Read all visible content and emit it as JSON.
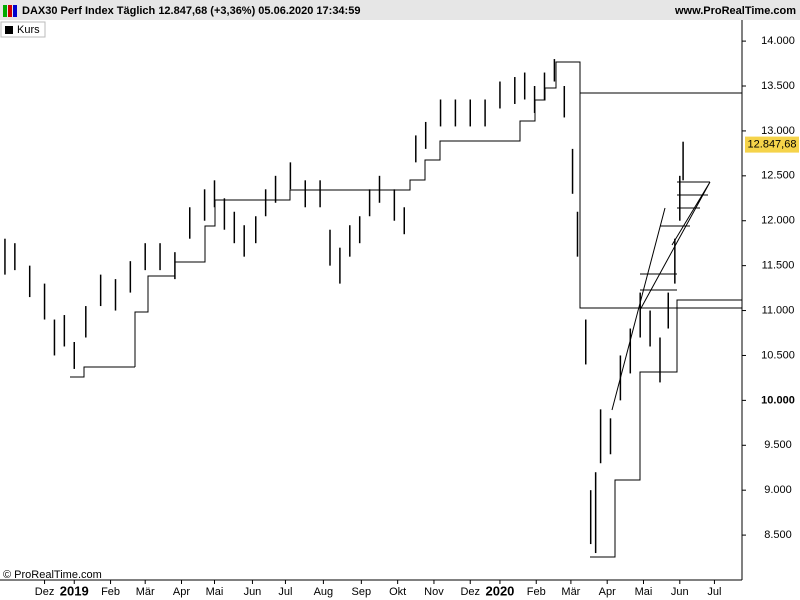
{
  "chart_data": {
    "type": "range-bar",
    "title": "DAX30 Perf Index Täglich 12.847,68 (+3,36%) 05.06.2020 17:34:59",
    "source": "www.ProRealTime.com",
    "copyright": "© ProRealTime.com",
    "legend": "Kurs",
    "color": "#000000",
    "last_price": {
      "value": 12847.68,
      "label": "12.847,68"
    },
    "x": [
      3,
      9,
      18,
      27,
      33,
      39,
      45,
      52,
      61,
      70,
      79,
      88,
      97,
      106,
      115,
      124,
      130,
      136,
      142,
      148,
      155,
      161,
      167,
      176,
      185,
      194,
      200,
      206,
      212,
      218,
      224,
      230,
      239,
      245,
      252,
      258,
      267,
      276,
      285,
      294,
      303,
      312,
      318,
      324,
      330,
      336,
      342,
      347,
      350,
      355,
      358,
      361,
      364,
      370,
      376,
      382,
      388,
      394,
      400,
      405,
      409,
      412,
      414
    ],
    "low": [
      11400,
      11450,
      11150,
      10900,
      10500,
      10600,
      10350,
      10700,
      11050,
      11000,
      11200,
      11450,
      11450,
      11350,
      11800,
      12000,
      12150,
      11900,
      11750,
      11600,
      11750,
      12050,
      12200,
      12350,
      12150,
      12150,
      11500,
      11300,
      11600,
      11750,
      12050,
      12200,
      12000,
      11850,
      12650,
      12800,
      13050,
      13050,
      13050,
      13050,
      13250,
      13300,
      13350,
      13200,
      13350,
      13550,
      13150,
      12300,
      11600,
      10400,
      8400,
      8300,
      9300,
      9400,
      10000,
      10300,
      10700,
      10600,
      10200,
      10800,
      11300,
      12000,
      12450
    ],
    "high": [
      11800,
      11750,
      11500,
      11300,
      10900,
      10950,
      10650,
      11050,
      11400,
      11350,
      11550,
      11750,
      11750,
      11650,
      12150,
      12350,
      12450,
      12250,
      12100,
      11950,
      12050,
      12350,
      12500,
      12650,
      12450,
      12450,
      11900,
      11700,
      11950,
      12050,
      12350,
      12500,
      12350,
      12150,
      12950,
      13100,
      13350,
      13350,
      13350,
      13350,
      13550,
      13600,
      13650,
      13500,
      13650,
      13800,
      13500,
      12800,
      12100,
      10900,
      9000,
      9200,
      9900,
      9800,
      10500,
      10800,
      11200,
      11000,
      10700,
      11200,
      11800,
      12500,
      12880
    ],
    "xlim": [
      0,
      449.7
    ],
    "ylim": [
      8000,
      14235
    ],
    "xticks": [
      {
        "value": 27,
        "label": "Dez"
      },
      {
        "value": 45,
        "label": "2019"
      },
      {
        "value": 67,
        "label": "Feb"
      },
      {
        "value": 88,
        "label": "Mär"
      },
      {
        "value": 110,
        "label": "Apr"
      },
      {
        "value": 130,
        "label": "Mai"
      },
      {
        "value": 153,
        "label": "Jun"
      },
      {
        "value": 173,
        "label": "Jul"
      },
      {
        "value": 196,
        "label": "Aug"
      },
      {
        "value": 219,
        "label": "Sep"
      },
      {
        "value": 241,
        "label": "Okt"
      },
      {
        "value": 263,
        "label": "Nov"
      },
      {
        "value": 285,
        "label": "Dez"
      },
      {
        "value": 303,
        "label": "2020"
      },
      {
        "value": 325,
        "label": "Feb"
      },
      {
        "value": 346,
        "label": "Mär"
      },
      {
        "value": 368,
        "label": "Apr"
      },
      {
        "value": 390,
        "label": "Mai"
      },
      {
        "value": 412,
        "label": "Jun"
      },
      {
        "value": 433,
        "label": "Jul"
      }
    ],
    "yticks": [
      {
        "value": 8500,
        "label": "8.500"
      },
      {
        "value": 9000,
        "label": "9.000"
      },
      {
        "value": 9500,
        "label": "9.500"
      },
      {
        "value": 10000,
        "label": "10.000"
      },
      {
        "value": 10500,
        "label": "10.500"
      },
      {
        "value": 11000,
        "label": "11.000"
      },
      {
        "value": 11500,
        "label": "11.500"
      },
      {
        "value": 12000,
        "label": "12.000"
      },
      {
        "value": 12500,
        "label": "12.500"
      },
      {
        "value": 13000,
        "label": "13.000"
      },
      {
        "value": 13500,
        "label": "13.500"
      },
      {
        "value": 14000,
        "label": "14.000"
      }
    ]
  }
}
